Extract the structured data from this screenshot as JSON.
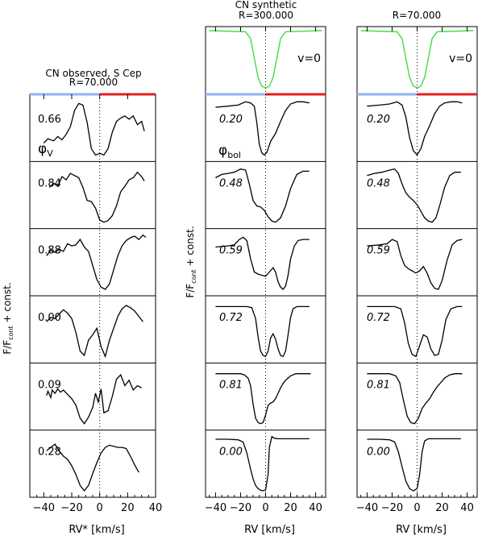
{
  "figure": {
    "ylabel": "F/F",
    "ylabel_sub": "cont",
    "ylabel_tail": " + const."
  },
  "colors": {
    "blue_bar": "#8fb3f0",
    "red_bar": "#e02020",
    "synthetic_v0": "#40dd40",
    "profile": "#000000"
  },
  "chart_data": [
    {
      "type": "line",
      "title": "CN observed, S Cep",
      "subtitle": "R=70.000",
      "xlabel": "RV",
      "xlabel_sym": "*",
      "xunit": "[km/s]",
      "xlim": [
        -50,
        40
      ],
      "xticks": [
        "−40",
        "−20",
        "0",
        "20",
        "40"
      ],
      "phase_symbol": "φ",
      "phase_sub": "V",
      "series": [
        {
          "name": "0.66",
          "x": [
            -40,
            -37,
            -33,
            -30,
            -27,
            -24,
            -21,
            -18,
            -15,
            -12,
            -9,
            -6,
            -3,
            0,
            3,
            6,
            9,
            12,
            15,
            18,
            21,
            24,
            27,
            30,
            32
          ],
          "y": [
            0.22,
            0.3,
            0.26,
            0.34,
            0.28,
            0.38,
            0.52,
            0.82,
            0.95,
            0.92,
            0.6,
            0.12,
            0.0,
            0.03,
            0.0,
            0.12,
            0.42,
            0.62,
            0.68,
            0.72,
            0.66,
            0.72,
            0.56,
            0.62,
            0.44
          ]
        },
        {
          "name": "0.84",
          "x": [
            -36,
            -33,
            -30,
            -27,
            -24,
            -21,
            -18,
            -15,
            -12,
            -9,
            -6,
            -3,
            0,
            3,
            6,
            9,
            12,
            15,
            18,
            21,
            24,
            27,
            30,
            32
          ],
          "y": [
            0.64,
            0.72,
            0.66,
            0.84,
            0.78,
            0.9,
            0.86,
            0.82,
            0.64,
            0.4,
            0.38,
            0.26,
            0.04,
            0.0,
            0.03,
            0.12,
            0.3,
            0.56,
            0.66,
            0.78,
            0.82,
            0.92,
            0.84,
            0.76
          ]
        },
        {
          "name": "0.88",
          "x": [
            -38,
            -35,
            -32,
            -29,
            -26,
            -23,
            -20,
            -17,
            -14,
            -11,
            -8,
            -5,
            -2,
            1,
            4,
            7,
            10,
            13,
            16,
            19,
            22,
            25,
            28,
            31,
            33
          ],
          "y": [
            0.62,
            0.72,
            0.68,
            0.74,
            0.7,
            0.84,
            0.8,
            0.82,
            0.92,
            0.78,
            0.7,
            0.44,
            0.18,
            0.04,
            0.0,
            0.1,
            0.36,
            0.62,
            0.8,
            0.9,
            0.95,
            0.98,
            0.92,
            1.0,
            0.96
          ]
        },
        {
          "name": "0.00",
          "x": [
            -38,
            -35,
            -32,
            -29,
            -26,
            -23,
            -20,
            -17,
            -14,
            -11,
            -8,
            -5,
            -2,
            1,
            4,
            7,
            10,
            13,
            16,
            19,
            22,
            25,
            28,
            31
          ],
          "y": [
            0.64,
            0.72,
            0.7,
            0.78,
            0.86,
            0.8,
            0.7,
            0.44,
            0.1,
            0.02,
            0.3,
            0.4,
            0.52,
            0.18,
            0.0,
            0.3,
            0.52,
            0.74,
            0.88,
            0.94,
            0.9,
            0.84,
            0.74,
            0.64
          ]
        },
        {
          "name": "0.09",
          "x": [
            -38,
            -37,
            -35,
            -34,
            -32,
            -30,
            -28,
            -26,
            -23,
            -20,
            -17,
            -14,
            -11,
            -8,
            -5,
            -3,
            -1,
            1,
            3,
            6,
            9,
            12,
            15,
            18,
            21,
            24,
            27,
            30
          ],
          "y": [
            0.52,
            0.6,
            0.48,
            0.62,
            0.56,
            0.64,
            0.58,
            0.62,
            0.54,
            0.46,
            0.34,
            0.1,
            0.0,
            0.12,
            0.3,
            0.56,
            0.4,
            0.64,
            0.2,
            0.24,
            0.5,
            0.82,
            0.9,
            0.7,
            0.8,
            0.62,
            0.7,
            0.66
          ]
        },
        {
          "name": "0.28",
          "x": [
            -38,
            -35,
            -32,
            -29,
            -26,
            -23,
            -20,
            -17,
            -14,
            -11,
            -8,
            -5,
            -2,
            1,
            4,
            7,
            10,
            13,
            16,
            19,
            22,
            25,
            28
          ],
          "y": [
            0.74,
            0.8,
            0.86,
            0.74,
            0.64,
            0.58,
            0.46,
            0.3,
            0.1,
            0.0,
            0.1,
            0.32,
            0.52,
            0.7,
            0.8,
            0.84,
            0.82,
            0.8,
            0.8,
            0.78,
            0.64,
            0.48,
            0.34
          ]
        }
      ]
    },
    {
      "type": "line",
      "title": "CN synthetic",
      "subtitle": "R=300.000",
      "xlabel": "RV",
      "xunit": "[km/s]",
      "xlim": [
        -48,
        48
      ],
      "xticks": [
        "−40",
        "−20",
        "0",
        "20",
        "40"
      ],
      "reference_label": "v=0",
      "phase_symbol": "φ",
      "phase_sub": "bol",
      "reference": {
        "x": [
          -45,
          -16,
          -12,
          -9,
          -6,
          -3,
          0,
          3,
          6,
          9,
          12,
          16,
          45
        ],
        "y": [
          1.0,
          0.98,
          0.86,
          0.52,
          0.18,
          0.03,
          0.0,
          0.03,
          0.18,
          0.52,
          0.86,
          0.98,
          1.0
        ]
      },
      "series": [
        {
          "name": "0.20",
          "x": [
            -40,
            -30,
            -22,
            -16,
            -12,
            -9,
            -7,
            -5,
            -3,
            -1,
            1,
            4,
            8,
            12,
            16,
            20,
            25,
            30,
            35
          ],
          "y": [
            0.88,
            0.9,
            0.92,
            0.98,
            0.96,
            0.9,
            0.6,
            0.2,
            0.04,
            0.0,
            0.05,
            0.25,
            0.4,
            0.62,
            0.82,
            0.94,
            0.98,
            0.98,
            0.96
          ]
        },
        {
          "name": "0.48",
          "x": [
            -40,
            -35,
            -30,
            -25,
            -20,
            -16,
            -13,
            -10,
            -7,
            -4,
            -1,
            2,
            5,
            8,
            12,
            16,
            20,
            25,
            30,
            35
          ],
          "y": [
            0.82,
            0.88,
            0.9,
            0.92,
            0.98,
            0.96,
            0.7,
            0.4,
            0.3,
            0.28,
            0.22,
            0.1,
            0.02,
            0.0,
            0.08,
            0.3,
            0.62,
            0.88,
            0.94,
            0.94
          ]
        },
        {
          "name": "0.59",
          "x": [
            -40,
            -30,
            -25,
            -21,
            -18,
            -15,
            -12,
            -9,
            -6,
            -3,
            0,
            3,
            6,
            8,
            10,
            12,
            14,
            16,
            18,
            20,
            23,
            26,
            30,
            35
          ],
          "y": [
            0.78,
            0.8,
            0.82,
            0.92,
            0.96,
            0.9,
            0.56,
            0.32,
            0.28,
            0.26,
            0.24,
            0.32,
            0.4,
            0.32,
            0.14,
            0.04,
            0.0,
            0.06,
            0.26,
            0.56,
            0.8,
            0.9,
            0.92,
            0.92
          ]
        },
        {
          "name": "0.72",
          "x": [
            -40,
            -25,
            -15,
            -11,
            -8,
            -6,
            -4,
            -2,
            0,
            2,
            4,
            6,
            8,
            10,
            12,
            14,
            16,
            18,
            20,
            22,
            25,
            30,
            35
          ],
          "y": [
            0.92,
            0.92,
            0.92,
            0.9,
            0.7,
            0.36,
            0.1,
            0.02,
            0.0,
            0.1,
            0.34,
            0.42,
            0.32,
            0.14,
            0.02,
            0.0,
            0.1,
            0.4,
            0.72,
            0.88,
            0.92,
            0.92,
            0.92
          ]
        },
        {
          "name": "0.81",
          "x": [
            -40,
            -30,
            -20,
            -17,
            -14,
            -12,
            -10,
            -8,
            -6,
            -4,
            -2,
            0,
            2,
            4,
            6,
            8,
            10,
            12,
            14,
            16,
            18,
            20,
            24,
            28,
            32,
            36
          ],
          "y": [
            0.92,
            0.92,
            0.92,
            0.9,
            0.84,
            0.7,
            0.36,
            0.1,
            0.02,
            0.0,
            0.02,
            0.16,
            0.34,
            0.38,
            0.4,
            0.46,
            0.56,
            0.66,
            0.74,
            0.8,
            0.84,
            0.88,
            0.92,
            0.92,
            0.92,
            0.92
          ]
        },
        {
          "name": "0.00",
          "x": [
            -40,
            -30,
            -22,
            -18,
            -15,
            -12,
            -10,
            -8,
            -6,
            -4,
            -2,
            0,
            2,
            3,
            5,
            7,
            10,
            15,
            20,
            25,
            30,
            35
          ],
          "y": [
            0.95,
            0.95,
            0.94,
            0.9,
            0.7,
            0.4,
            0.22,
            0.1,
            0.04,
            0.01,
            0.0,
            0.02,
            0.3,
            0.8,
            1.0,
            0.97,
            0.96,
            0.96,
            0.96,
            0.96,
            0.96,
            0.96
          ]
        }
      ]
    },
    {
      "type": "line",
      "title": "",
      "subtitle": "R=70.000",
      "xlabel": "RV",
      "xunit": "[km/s]",
      "xlim": [
        -48,
        48
      ],
      "xticks": [
        "−40",
        "−20",
        "0",
        "20",
        "40"
      ],
      "reference_label": "v=0",
      "reference": {
        "x": [
          -45,
          -16,
          -12,
          -9,
          -6,
          -3,
          0,
          3,
          6,
          9,
          12,
          16,
          45
        ],
        "y": [
          1.0,
          0.98,
          0.86,
          0.52,
          0.18,
          0.03,
          0.0,
          0.03,
          0.18,
          0.52,
          0.86,
          0.98,
          1.0
        ]
      },
      "series": [
        {
          "name": "0.20",
          "x": [
            -40,
            -30,
            -22,
            -16,
            -12,
            -9,
            -6,
            -3,
            0,
            3,
            6,
            10,
            14,
            18,
            22,
            27,
            32,
            36
          ],
          "y": [
            0.9,
            0.92,
            0.94,
            0.98,
            0.92,
            0.7,
            0.32,
            0.08,
            0.0,
            0.12,
            0.34,
            0.54,
            0.76,
            0.9,
            0.96,
            0.98,
            0.98,
            0.96
          ]
        },
        {
          "name": "0.48",
          "x": [
            -40,
            -34,
            -28,
            -22,
            -18,
            -15,
            -12,
            -9,
            -6,
            -3,
            0,
            3,
            6,
            9,
            12,
            15,
            18,
            22,
            26,
            30,
            35
          ],
          "y": [
            0.86,
            0.9,
            0.92,
            0.96,
            0.98,
            0.9,
            0.7,
            0.54,
            0.46,
            0.4,
            0.32,
            0.2,
            0.08,
            0.02,
            0.0,
            0.08,
            0.3,
            0.64,
            0.86,
            0.92,
            0.92
          ]
        },
        {
          "name": "0.59",
          "x": [
            -40,
            -30,
            -24,
            -20,
            -16,
            -13,
            -10,
            -7,
            -4,
            -1,
            2,
            5,
            8,
            11,
            14,
            17,
            20,
            24,
            28,
            32,
            36
          ],
          "y": [
            0.8,
            0.82,
            0.84,
            0.92,
            0.88,
            0.62,
            0.44,
            0.38,
            0.34,
            0.3,
            0.34,
            0.42,
            0.3,
            0.12,
            0.02,
            0.0,
            0.16,
            0.54,
            0.82,
            0.9,
            0.92
          ]
        },
        {
          "name": "0.72",
          "x": [
            -40,
            -28,
            -18,
            -13,
            -10,
            -7,
            -4,
            -1,
            2,
            5,
            8,
            11,
            14,
            17,
            20,
            23,
            27,
            32,
            36
          ],
          "y": [
            0.92,
            0.92,
            0.92,
            0.88,
            0.62,
            0.24,
            0.04,
            0.0,
            0.2,
            0.4,
            0.36,
            0.14,
            0.02,
            0.04,
            0.3,
            0.68,
            0.88,
            0.92,
            0.92
          ]
        },
        {
          "name": "0.81",
          "x": [
            -40,
            -30,
            -22,
            -17,
            -14,
            -11,
            -8,
            -5,
            -2,
            1,
            4,
            7,
            10,
            13,
            16,
            19,
            22,
            26,
            30,
            36
          ],
          "y": [
            0.92,
            0.92,
            0.92,
            0.88,
            0.76,
            0.44,
            0.14,
            0.02,
            0.0,
            0.1,
            0.28,
            0.38,
            0.46,
            0.58,
            0.68,
            0.76,
            0.84,
            0.9,
            0.92,
            0.92
          ]
        },
        {
          "name": "0.00",
          "x": [
            -40,
            -30,
            -22,
            -18,
            -15,
            -12,
            -9,
            -6,
            -3,
            0,
            2,
            4,
            6,
            9,
            12,
            16,
            20,
            25,
            30,
            35
          ],
          "y": [
            0.95,
            0.95,
            0.94,
            0.9,
            0.72,
            0.44,
            0.18,
            0.04,
            0.0,
            0.04,
            0.3,
            0.72,
            0.92,
            0.96,
            0.96,
            0.96,
            0.96,
            0.96,
            0.96,
            0.96
          ]
        }
      ]
    }
  ]
}
